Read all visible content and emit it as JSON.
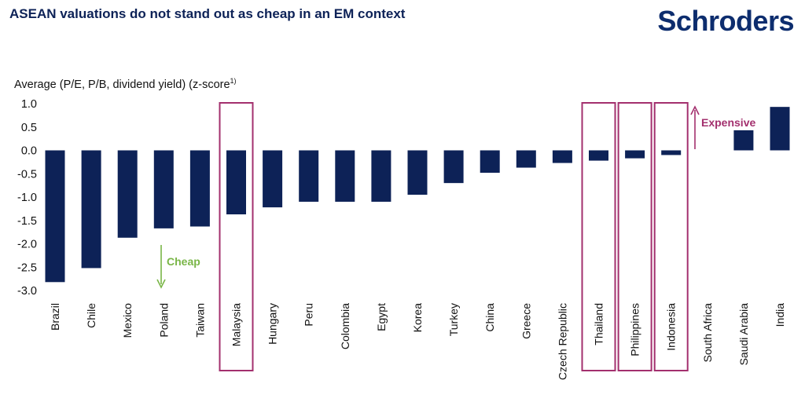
{
  "header": {
    "title": "ASEAN valuations do not stand out as cheap in an EM context",
    "logo_text": "Schroders"
  },
  "chart_data": {
    "type": "bar",
    "title": "ASEAN valuations do not stand out as cheap in an EM context",
    "ylabel": "Average (P/E, P/B, dividend yield) (z-score",
    "ylabel_superscript": "1)",
    "xlabel": "",
    "ylim": [
      -3.0,
      1.0
    ],
    "yticks": [
      "1.0",
      "0.5",
      "0.0",
      "-0.5",
      "-1.0",
      "-1.5",
      "-2.0",
      "-2.5",
      "-3.0"
    ],
    "ytick_values": [
      1.0,
      0.5,
      0.0,
      -0.5,
      -1.0,
      -1.5,
      -2.0,
      -2.5,
      -3.0
    ],
    "grid": false,
    "categories": [
      "Brazil",
      "Chile",
      "Mexico",
      "Poland",
      "Taiwan",
      "Malaysia",
      "Hungary",
      "Peru",
      "Colombia",
      "Egypt",
      "Korea",
      "Turkey",
      "China",
      "Greece",
      "Czech Republic",
      "Thailand",
      "Philippines",
      "Indonesia",
      "South Africa",
      "Saudi Arabia",
      "India"
    ],
    "values": [
      -2.82,
      -2.52,
      -1.87,
      -1.67,
      -1.63,
      -1.37,
      -1.22,
      -1.1,
      -1.1,
      -1.1,
      -0.95,
      -0.7,
      -0.48,
      -0.37,
      -0.27,
      -0.22,
      -0.17,
      -0.1,
      0.0,
      0.43,
      0.93
    ],
    "highlighted": [
      "Malaysia",
      "Thailand",
      "Philippines",
      "Indonesia"
    ],
    "annotations": [
      {
        "text": "Cheap",
        "direction": "down",
        "color": "#7ab648"
      },
      {
        "text": "Expensive",
        "direction": "up",
        "color": "#a3306e"
      }
    ],
    "colors": {
      "bar": "#0d2257",
      "highlight_box": "#a3306e",
      "text": "#111111"
    }
  }
}
